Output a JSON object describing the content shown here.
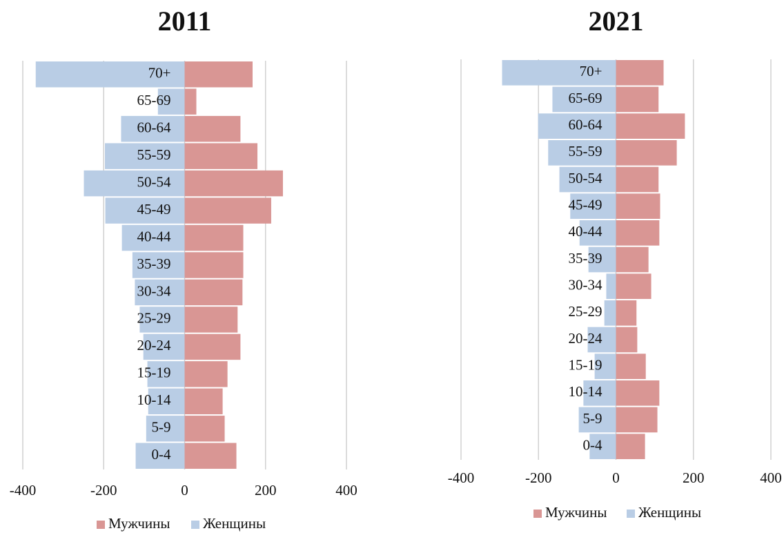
{
  "chart_data": [
    {
      "type": "bar",
      "orientation": "horizontal",
      "title": "2011",
      "categories": [
        "0-4",
        "5-9",
        "10-14",
        "15-19",
        "20-24",
        "25-29",
        "30-34",
        "35-39",
        "40-44",
        "45-49",
        "50-54",
        "55-59",
        "60-64",
        "65-69",
        "70+"
      ],
      "series": [
        {
          "name": "Мужчины",
          "color": "#d99694",
          "values": [
            128,
            99,
            94,
            106,
            138,
            131,
            143,
            145,
            145,
            214,
            243,
            180,
            138,
            29,
            168
          ]
        },
        {
          "name": "Женщины",
          "color": "#b9cde5",
          "values": [
            -121,
            -95,
            -90,
            -92,
            -102,
            -111,
            -123,
            -129,
            -155,
            -196,
            -249,
            -197,
            -157,
            -66,
            -368
          ]
        }
      ],
      "xlim": [
        -400,
        400
      ],
      "xticks": [
        -400,
        -200,
        0,
        200,
        400
      ],
      "grid": true,
      "legend": "bottom"
    },
    {
      "type": "bar",
      "orientation": "horizontal",
      "title": "2021",
      "categories": [
        "0-4",
        "5-9",
        "10-14",
        "15-19",
        "20-24",
        "25-29",
        "30-34",
        "35-39",
        "40-44",
        "45-49",
        "50-54",
        "55-59",
        "60-64",
        "65-69",
        "70+"
      ],
      "series": [
        {
          "name": "Мужчины",
          "color": "#d99694",
          "values": [
            75,
            107,
            112,
            77,
            55,
            53,
            91,
            84,
            112,
            114,
            110,
            157,
            178,
            110,
            123
          ]
        },
        {
          "name": "Женщины",
          "color": "#b9cde5",
          "values": [
            -68,
            -96,
            -84,
            -55,
            -73,
            -30,
            -25,
            -71,
            -94,
            -118,
            -146,
            -175,
            -201,
            -164,
            -294
          ]
        }
      ],
      "xlim": [
        -400,
        400
      ],
      "xticks": [
        -400,
        -200,
        0,
        200,
        400
      ],
      "grid": true,
      "legend": "bottom"
    }
  ]
}
